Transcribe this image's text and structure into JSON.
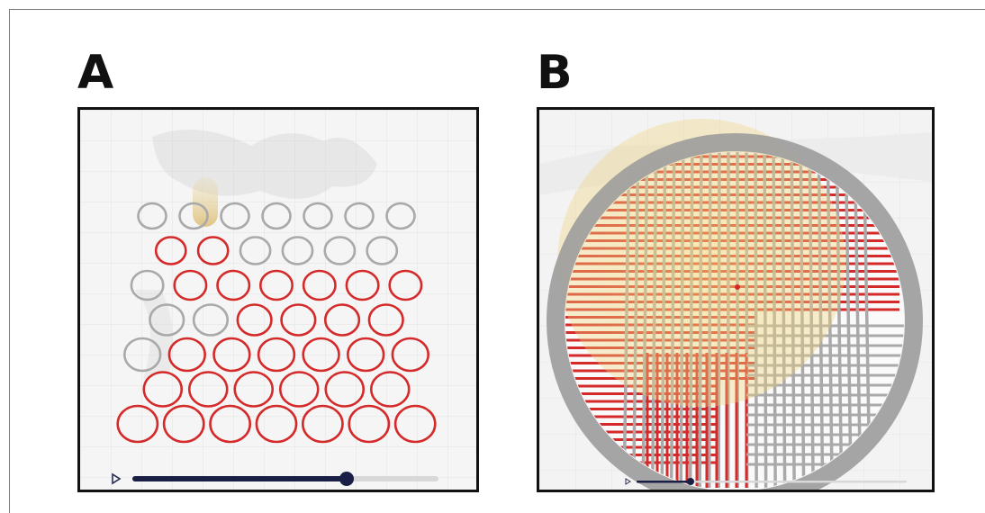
{
  "figure": {
    "panels": [
      {
        "id": "A",
        "label": "A"
      },
      {
        "id": "B",
        "label": "B"
      }
    ]
  },
  "colors": {
    "active_ring": "#d42a2a",
    "inactive_ring": "#a9a9a9",
    "slider_track": "#1a1f45",
    "slider_rest": "#d8d8d8",
    "hot_zone": "#f0d878",
    "outer_ring": "#9c9c9c"
  },
  "icons": {
    "play": "play-icon"
  },
  "panel_a": {
    "slider_progress": 0.7,
    "rings": [
      [
        "gray",
        "gray",
        "gray",
        "gray",
        "gray",
        "gray",
        "gray"
      ],
      [
        "red",
        "red",
        "gray",
        "gray",
        "gray",
        "gray"
      ],
      [
        "gray",
        "red",
        "red",
        "red",
        "red",
        "red",
        "red"
      ],
      [
        "gray",
        "gray",
        "red",
        "red",
        "red",
        "red"
      ],
      [
        "gray",
        "red",
        "red",
        "red",
        "red",
        "red",
        "red"
      ],
      [
        "red",
        "red",
        "red",
        "red",
        "red",
        "red"
      ],
      [
        "red",
        "red",
        "red",
        "red",
        "red",
        "red",
        "red"
      ]
    ]
  },
  "panel_b": {
    "slider_progress": 0.2
  }
}
